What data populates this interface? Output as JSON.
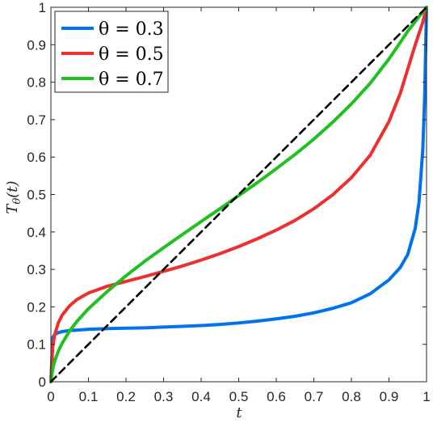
{
  "chart_data": {
    "type": "line",
    "title": "",
    "xlabel": "t",
    "ylabel": "T_θ(t)",
    "ylabel_main": "T",
    "ylabel_sub": "θ",
    "ylabel_arg": "(t)",
    "xlim": [
      0,
      1
    ],
    "ylim": [
      0,
      1
    ],
    "x_ticks": [
      0,
      0.1,
      0.2,
      0.3,
      0.4,
      0.5,
      0.6,
      0.7,
      0.8,
      0.9,
      1
    ],
    "x_tick_labels": [
      "0",
      "0.1",
      "0.2",
      "0.3",
      "0.4",
      "0.5",
      "0.6",
      "0.7",
      "0.8",
      "0.9",
      "1"
    ],
    "y_ticks": [
      0,
      0.1,
      0.2,
      0.3,
      0.4,
      0.5,
      0.6,
      0.7,
      0.8,
      0.9,
      1
    ],
    "y_tick_labels": [
      "0",
      "0.1",
      "0.2",
      "0.3",
      "0.4",
      "0.5",
      "0.6",
      "0.7",
      "0.8",
      "0.9",
      "1"
    ],
    "grid": false,
    "legend_position": "top-left",
    "x": [
      0,
      0.005,
      0.01,
      0.02,
      0.03,
      0.05,
      0.07,
      0.1,
      0.15,
      0.2,
      0.25,
      0.3,
      0.35,
      0.4,
      0.45,
      0.5,
      0.55,
      0.6,
      0.65,
      0.7,
      0.75,
      0.8,
      0.85,
      0.9,
      0.93,
      0.95,
      0.97,
      0.98,
      0.99,
      0.995,
      1
    ],
    "series": [
      {
        "name": "θ = 0.3",
        "color": "#0072ec",
        "values": [
          0,
          0.118,
          0.126,
          0.131,
          0.134,
          0.137,
          0.138,
          0.14,
          0.142,
          0.143,
          0.144,
          0.146,
          0.148,
          0.15,
          0.153,
          0.157,
          0.162,
          0.168,
          0.175,
          0.184,
          0.196,
          0.211,
          0.235,
          0.272,
          0.305,
          0.34,
          0.41,
          0.48,
          0.62,
          0.76,
          1
        ]
      },
      {
        "name": "θ = 0.5",
        "color": "#ec3030",
        "values": [
          0,
          0.095,
          0.125,
          0.158,
          0.178,
          0.203,
          0.22,
          0.237,
          0.255,
          0.268,
          0.281,
          0.295,
          0.309,
          0.325,
          0.342,
          0.361,
          0.382,
          0.405,
          0.431,
          0.462,
          0.499,
          0.545,
          0.605,
          0.695,
          0.77,
          0.835,
          0.9,
          0.93,
          0.96,
          0.98,
          1
        ]
      },
      {
        "name": "θ = 0.7",
        "color": "#20c020",
        "values": [
          0,
          0.035,
          0.055,
          0.082,
          0.103,
          0.136,
          0.162,
          0.195,
          0.241,
          0.283,
          0.322,
          0.358,
          0.393,
          0.428,
          0.462,
          0.497,
          0.532,
          0.569,
          0.607,
          0.648,
          0.693,
          0.742,
          0.797,
          0.862,
          0.906,
          0.936,
          0.962,
          0.975,
          0.987,
          0.993,
          1
        ]
      },
      {
        "name": "",
        "color": "#000000",
        "dashed": true,
        "values": [
          0,
          0.005,
          0.01,
          0.02,
          0.03,
          0.05,
          0.07,
          0.1,
          0.15,
          0.2,
          0.25,
          0.3,
          0.35,
          0.4,
          0.45,
          0.5,
          0.55,
          0.6,
          0.65,
          0.7,
          0.75,
          0.8,
          0.85,
          0.9,
          0.93,
          0.95,
          0.97,
          0.98,
          0.99,
          0.995,
          1
        ]
      }
    ]
  }
}
